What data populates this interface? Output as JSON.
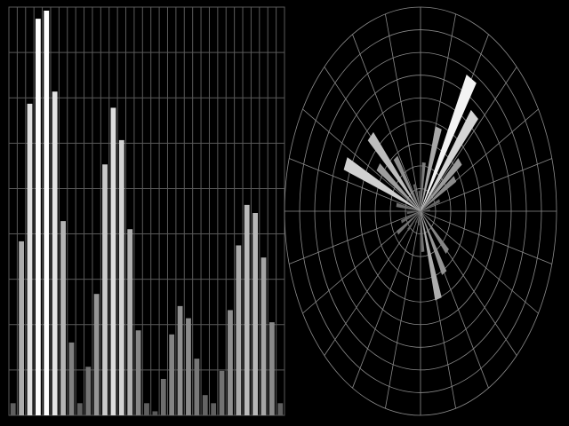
{
  "chart_data": [
    {
      "type": "bar",
      "grid": true,
      "ylim": [
        0,
        1
      ],
      "values": [
        0.03,
        0.43,
        0.77,
        0.98,
        1.0,
        0.8,
        0.48,
        0.18,
        0.03,
        0.12,
        0.3,
        0.62,
        0.76,
        0.68,
        0.46,
        0.21,
        0.03,
        0.01,
        0.09,
        0.2,
        0.27,
        0.24,
        0.14,
        0.05,
        0.03,
        0.11,
        0.26,
        0.42,
        0.52,
        0.5,
        0.39,
        0.23,
        0.03
      ],
      "color_scale": [
        "#555555",
        "#ffffff"
      ]
    },
    {
      "type": "polar-bar",
      "grid": true,
      "rlim": [
        0,
        1
      ],
      "angles_deg": [
        5,
        20,
        32,
        40,
        50,
        60,
        72,
        84,
        96,
        110,
        125,
        135,
        145,
        157,
        170,
        185,
        200,
        212,
        225,
        238,
        250,
        262,
        275,
        287,
        300,
        315,
        330,
        345
      ],
      "values": [
        0.07,
        0.15,
        0.3,
        0.38,
        0.62,
        0.75,
        0.43,
        0.24,
        0.1,
        0.14,
        0.32,
        0.52,
        0.38,
        0.6,
        0.18,
        0.1,
        0.15,
        0.2,
        0.13,
        0.07,
        0.06,
        0.07,
        0.2,
        0.45,
        0.35,
        0.28,
        0.08,
        0.05
      ],
      "color_scale": [
        "#444444",
        "#ffffff"
      ]
    }
  ]
}
